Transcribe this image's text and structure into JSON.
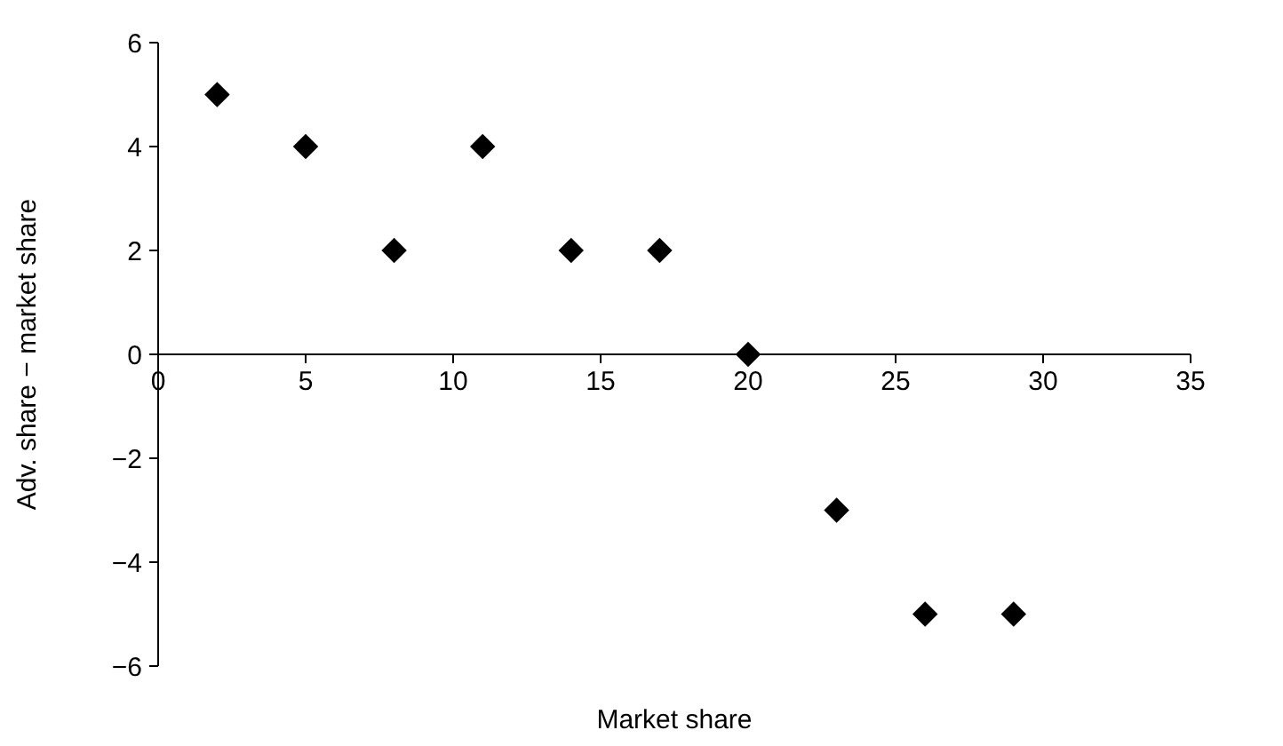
{
  "chart_data": {
    "type": "scatter",
    "xlabel": "Market share",
    "ylabel": "Adv. share − market share",
    "x": [
      2,
      5,
      8,
      11,
      14,
      17,
      20,
      23,
      26,
      29
    ],
    "values": [
      5,
      4,
      2,
      4,
      2,
      2,
      0,
      -3,
      -5,
      -5
    ],
    "color": "#000000",
    "marker": "diamond",
    "grid": false,
    "xlim": [
      0,
      35
    ],
    "xticks": [
      0,
      5,
      10,
      15,
      20,
      25,
      30,
      35
    ],
    "ylim": [
      -6,
      6
    ],
    "yticks": [
      {
        "value": -6,
        "label": "−6"
      },
      {
        "value": -4,
        "label": "−4"
      },
      {
        "value": -2,
        "label": "−2"
      },
      0,
      2,
      4,
      6
    ]
  }
}
